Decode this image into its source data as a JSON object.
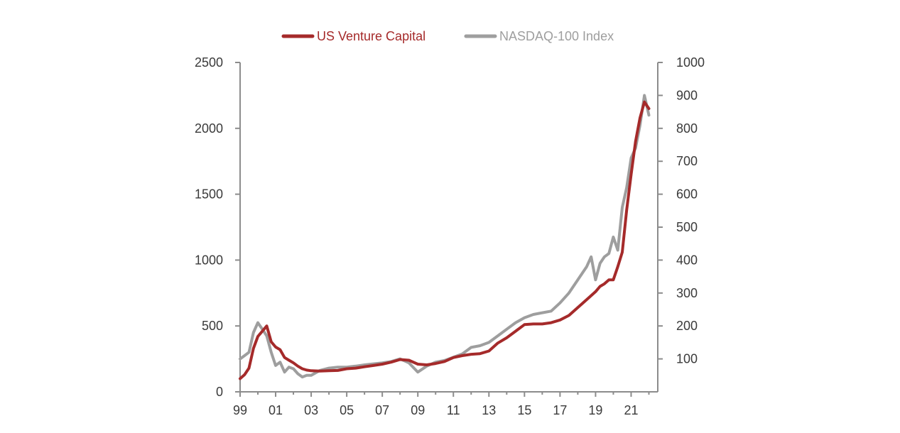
{
  "chart_data": {
    "type": "line",
    "title": "",
    "xlabel": "",
    "ylabel": "",
    "x_tick_labels": [
      "99",
      "01",
      "03",
      "05",
      "07",
      "09",
      "11",
      "13",
      "15",
      "17",
      "19",
      "21"
    ],
    "x_tick_years": [
      1999,
      2001,
      2003,
      2005,
      2007,
      2009,
      2011,
      2013,
      2015,
      2017,
      2019,
      2021
    ],
    "xlim": [
      1999,
      2022.5
    ],
    "y_left": {
      "lim": [
        0,
        2500
      ],
      "ticks": [
        0,
        500,
        1000,
        1500,
        2000,
        2500
      ]
    },
    "y_right": {
      "lim": [
        0,
        1000
      ],
      "ticks": [
        100,
        200,
        300,
        400,
        500,
        600,
        700,
        800,
        900,
        1000
      ]
    },
    "legend_position": "top-center",
    "grid": false,
    "series": [
      {
        "name": "US Venture Capital",
        "color": "#a52a2a",
        "axis": "left",
        "x": [
          1999.0,
          1999.25,
          1999.5,
          1999.75,
          2000.0,
          2000.25,
          2000.5,
          2000.75,
          2001.0,
          2001.25,
          2001.5,
          2001.75,
          2002.0,
          2002.25,
          2002.5,
          2002.75,
          2003.0,
          2003.5,
          2004.0,
          2004.5,
          2005.0,
          2005.5,
          2006.0,
          2006.5,
          2007.0,
          2007.5,
          2008.0,
          2008.5,
          2009.0,
          2009.5,
          2010.0,
          2010.5,
          2011.0,
          2011.5,
          2012.0,
          2012.5,
          2013.0,
          2013.5,
          2014.0,
          2014.5,
          2015.0,
          2015.5,
          2016.0,
          2016.5,
          2017.0,
          2017.5,
          2018.0,
          2018.5,
          2019.0,
          2019.25,
          2019.5,
          2019.75,
          2020.0,
          2020.25,
          2020.5,
          2020.75,
          2021.0,
          2021.25,
          2021.5,
          2021.75,
          2022.0
        ],
        "values": [
          100,
          130,
          180,
          330,
          420,
          460,
          500,
          380,
          340,
          320,
          260,
          240,
          220,
          195,
          175,
          165,
          160,
          158,
          160,
          162,
          175,
          180,
          190,
          200,
          210,
          225,
          245,
          240,
          210,
          205,
          215,
          230,
          260,
          275,
          285,
          290,
          310,
          370,
          410,
          460,
          510,
          515,
          515,
          525,
          545,
          580,
          640,
          700,
          760,
          800,
          820,
          850,
          850,
          950,
          1060,
          1380,
          1650,
          1900,
          2080,
          2200,
          2150
        ],
        "scale_note": ""
      },
      {
        "name": "NASDAQ-100 Index",
        "color": "#9e9e9e",
        "axis": "right",
        "x": [
          1999.0,
          1999.25,
          1999.5,
          1999.75,
          2000.0,
          2000.25,
          2000.5,
          2000.75,
          2001.0,
          2001.25,
          2001.5,
          2001.75,
          2002.0,
          2002.25,
          2002.5,
          2002.75,
          2003.0,
          2003.5,
          2004.0,
          2004.5,
          2005.0,
          2005.5,
          2006.0,
          2006.5,
          2007.0,
          2007.5,
          2008.0,
          2008.5,
          2009.0,
          2009.5,
          2010.0,
          2010.5,
          2011.0,
          2011.5,
          2012.0,
          2012.5,
          2013.0,
          2013.5,
          2014.0,
          2014.5,
          2015.0,
          2015.5,
          2016.0,
          2016.5,
          2017.0,
          2017.5,
          2018.0,
          2018.5,
          2018.75,
          2019.0,
          2019.25,
          2019.5,
          2019.75,
          2020.0,
          2020.25,
          2020.5,
          2020.75,
          2021.0,
          2021.25,
          2021.5,
          2021.75,
          2022.0
        ],
        "values": [
          100,
          110,
          120,
          180,
          210,
          190,
          170,
          120,
          80,
          90,
          60,
          75,
          70,
          55,
          45,
          50,
          50,
          65,
          72,
          75,
          75,
          78,
          82,
          85,
          88,
          92,
          100,
          88,
          60,
          78,
          90,
          95,
          105,
          115,
          135,
          140,
          150,
          170,
          190,
          210,
          225,
          235,
          240,
          245,
          270,
          300,
          340,
          380,
          410,
          340,
          390,
          410,
          420,
          470,
          430,
          560,
          620,
          710,
          740,
          810,
          900,
          840
        ]
      }
    ]
  }
}
